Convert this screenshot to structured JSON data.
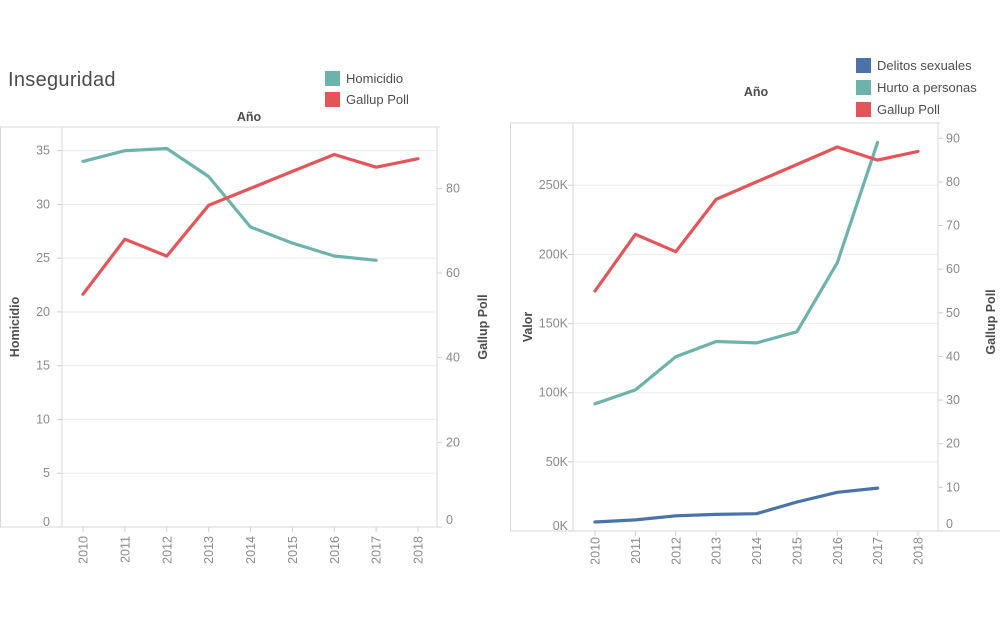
{
  "title": "Inseguridad",
  "styles": {
    "background": "#ffffff",
    "grid_color": "#ececec",
    "border_color": "#d8d8d8",
    "tick_color": "#d0d0d0",
    "tick_label_color": "#8a8a8a",
    "axis_title_color": "#4d4d4d",
    "legend_text_color": "#4e4e4e",
    "title_color": "#4c4c4c",
    "teal": "#6db3ab",
    "red": "#e4555a",
    "blue": "#4a74a9"
  },
  "chart_data": [
    {
      "type": "line",
      "title": "Año",
      "grid": "horizontal",
      "legend_position": "top-right",
      "x_labels": [
        "2010",
        "2011",
        "2012",
        "2013",
        "2014",
        "2015",
        "2016",
        "2017",
        "2018"
      ],
      "left_axis": {
        "title": "Homicidio",
        "range": [
          0,
          37.2
        ],
        "ticks": [
          {
            "v": 0,
            "label": "0"
          },
          {
            "v": 5,
            "label": "5"
          },
          {
            "v": 10,
            "label": "10"
          },
          {
            "v": 15,
            "label": "15"
          },
          {
            "v": 20,
            "label": "20"
          },
          {
            "v": 25,
            "label": "25"
          },
          {
            "v": 30,
            "label": "30"
          },
          {
            "v": 35,
            "label": "35"
          }
        ]
      },
      "right_axis": {
        "title": "Gallup Poll",
        "range": [
          0,
          94.5
        ],
        "ticks": [
          {
            "v": 0,
            "label": "0"
          },
          {
            "v": 20,
            "label": "20"
          },
          {
            "v": 40,
            "label": "40"
          },
          {
            "v": 60,
            "label": "60"
          },
          {
            "v": 80,
            "label": "80"
          }
        ]
      },
      "series": [
        {
          "name": "Homicidio",
          "color": "#6db3ab",
          "axis": "left",
          "values": [
            34.0,
            35.0,
            35.2,
            32.6,
            27.9,
            26.4,
            25.2,
            24.8,
            null
          ]
        },
        {
          "name": "Gallup Poll",
          "color": "#e4555a",
          "axis": "right",
          "values": [
            55,
            68,
            64,
            76,
            80,
            84,
            88,
            85,
            87
          ]
        }
      ]
    },
    {
      "type": "line",
      "title": "Año",
      "grid": "horizontal",
      "legend_position": "top-right",
      "x_labels": [
        "2010",
        "2011",
        "2012",
        "2013",
        "2014",
        "2015",
        "2016",
        "2017",
        "2018"
      ],
      "left_axis": {
        "title": "Valor",
        "range": [
          0,
          295000
        ],
        "ticks": [
          {
            "v": 0,
            "label": "0K"
          },
          {
            "v": 50000,
            "label": "50K"
          },
          {
            "v": 100000,
            "label": "100K"
          },
          {
            "v": 150000,
            "label": "150K"
          },
          {
            "v": 200000,
            "label": "200K"
          },
          {
            "v": 250000,
            "label": "250K"
          }
        ]
      },
      "right_axis": {
        "title": "Gallup Poll",
        "range": [
          0,
          93.5
        ],
        "ticks": [
          {
            "v": 0,
            "label": "0"
          },
          {
            "v": 10,
            "label": "10"
          },
          {
            "v": 20,
            "label": "20"
          },
          {
            "v": 30,
            "label": "30"
          },
          {
            "v": 40,
            "label": "40"
          },
          {
            "v": 50,
            "label": "50"
          },
          {
            "v": 60,
            "label": "60"
          },
          {
            "v": 70,
            "label": "70"
          },
          {
            "v": 80,
            "label": "80"
          },
          {
            "v": 90,
            "label": "90"
          }
        ]
      },
      "series": [
        {
          "name": "Delitos sexuales",
          "color": "#4a74a9",
          "axis": "left",
          "values": [
            6500,
            8000,
            11000,
            12000,
            12500,
            21000,
            28000,
            31000,
            null
          ]
        },
        {
          "name": "Hurto a personas",
          "color": "#6db3ab",
          "axis": "left",
          "values": [
            92000,
            102000,
            126000,
            137000,
            136000,
            144000,
            194000,
            281000,
            null
          ]
        },
        {
          "name": "Gallup Poll",
          "color": "#e4555a",
          "axis": "right",
          "values": [
            55,
            68,
            64,
            76,
            80,
            84,
            88,
            85,
            87
          ]
        }
      ]
    }
  ]
}
